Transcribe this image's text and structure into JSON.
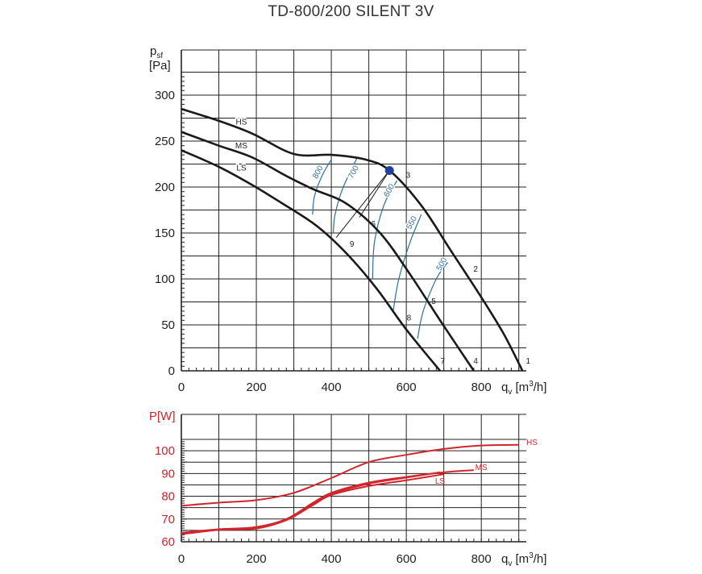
{
  "title": "TD-800/200 SILENT 3V",
  "chart_data": [
    {
      "type": "line",
      "name": "pressure",
      "ylabel_main": "p",
      "ylabel_sub": "sf",
      "ylabel_unit": "[Pa]",
      "xlabel_q": "q",
      "xlabel_sub": "v",
      "xlabel_unit": " [m",
      "xlabel_sup": "3",
      "xlabel_end": "/h]",
      "xlim": [
        0,
        920
      ],
      "ylim": [
        0,
        300
      ],
      "x_ticks": [
        0,
        200,
        400,
        600,
        800
      ],
      "y_ticks": [
        0,
        50,
        100,
        150,
        200,
        250,
        300
      ],
      "grid": true,
      "colors": {
        "curve": "#1a1a1a",
        "iso": "#2e6f9e",
        "point": "#1f3f9f"
      },
      "series": [
        {
          "name": "HS",
          "label_at": [
            160,
            268
          ],
          "x": [
            0,
            100,
            190,
            300,
            400,
            490,
            555,
            640,
            720,
            800,
            860,
            910
          ],
          "y": [
            285,
            272,
            258,
            236,
            235,
            230,
            218,
            180,
            130,
            80,
            40,
            0
          ]
        },
        {
          "name": "MS",
          "label_at": [
            160,
            242
          ],
          "x": [
            0,
            100,
            190,
            280,
            350,
            440,
            530,
            610,
            690,
            780
          ],
          "y": [
            260,
            245,
            232,
            212,
            198,
            182,
            150,
            105,
            55,
            0
          ]
        },
        {
          "name": "LS",
          "label_at": [
            160,
            218
          ],
          "x": [
            0,
            100,
            190,
            270,
            360,
            440,
            520,
            600,
            690
          ],
          "y": [
            240,
            222,
            202,
            182,
            158,
            128,
            90,
            45,
            0
          ]
        }
      ],
      "iso_lines": [
        {
          "label": "800",
          "label_at": [
            370,
            215
          ],
          "x": [
            350,
            355,
            375,
            400
          ],
          "y": [
            170,
            190,
            212,
            230
          ]
        },
        {
          "label": "700",
          "label_at": [
            465,
            215
          ],
          "x": [
            405,
            410,
            430,
            470
          ],
          "y": [
            150,
            170,
            198,
            233
          ]
        },
        {
          "label": "600",
          "label_at": [
            560,
            195
          ],
          "x": [
            510,
            515,
            540,
            575
          ],
          "y": [
            100,
            140,
            180,
            207
          ]
        },
        {
          "label": "550",
          "label_at": [
            620,
            160
          ],
          "x": [
            565,
            580,
            610,
            640
          ],
          "y": [
            65,
            100,
            140,
            170
          ]
        },
        {
          "label": "500",
          "label_at": [
            700,
            115
          ],
          "x": [
            630,
            645,
            680,
            710
          ],
          "y": [
            35,
            65,
            100,
            118
          ]
        }
      ],
      "op_lines": [
        {
          "x": [
            413,
            555
          ],
          "y": [
            145,
            218
          ]
        },
        {
          "x": [
            475,
            555
          ],
          "y": [
            167,
            218
          ]
        }
      ],
      "operating_point": {
        "x": 555,
        "y": 218
      },
      "point_labels": [
        {
          "label": "1",
          "at": [
            925,
            8
          ]
        },
        {
          "label": "2",
          "at": [
            785,
            108
          ]
        },
        {
          "label": "3",
          "at": [
            605,
            210
          ]
        },
        {
          "label": "4",
          "at": [
            785,
            8
          ]
        },
        {
          "label": "5",
          "at": [
            673,
            73
          ]
        },
        {
          "label": "6",
          "at": [
            512,
            157
          ]
        },
        {
          "label": "7",
          "at": [
            697,
            8
          ]
        },
        {
          "label": "8",
          "at": [
            607,
            55
          ]
        },
        {
          "label": "9",
          "at": [
            455,
            135
          ]
        }
      ]
    },
    {
      "type": "line",
      "name": "power",
      "ylabel": "P[W]",
      "xlabel_q": "q",
      "xlabel_sub": "v",
      "xlabel_unit": " [m",
      "xlabel_sup": "3",
      "xlabel_end": "/h]",
      "xlim": [
        0,
        920
      ],
      "ylim": [
        60,
        105
      ],
      "x_ticks": [
        0,
        200,
        400,
        600,
        800
      ],
      "y_ticks": [
        60,
        70,
        80,
        90,
        100
      ],
      "grid": true,
      "colors": {
        "curve": "#d0262c"
      },
      "series": [
        {
          "name": "HS",
          "label_at": [
            935,
            102.5
          ],
          "x": [
            0,
            100,
            200,
            300,
            400,
            500,
            600,
            700,
            800,
            900
          ],
          "y": [
            75.8,
            77.2,
            78.3,
            81.5,
            88,
            95,
            98.2,
            100.8,
            102.3,
            102.6
          ]
        },
        {
          "name": "MS",
          "label_at": [
            800,
            91.5
          ],
          "x": [
            0,
            100,
            200,
            280,
            350,
            400,
            500,
            600,
            700,
            780
          ],
          "y": [
            64,
            65.5,
            66.5,
            70,
            77,
            81.5,
            86,
            88.5,
            90.5,
            91.5
          ]
        },
        {
          "name": "LS",
          "label_at": [
            690,
            85.6
          ],
          "x": [
            0,
            100,
            200,
            280,
            350,
            400,
            500,
            600,
            700
          ],
          "y": [
            63.3,
            65.2,
            65.8,
            69.5,
            76,
            80.5,
            84.5,
            87,
            89.7
          ]
        }
      ],
      "extra_series": [
        {
          "x": [
            0,
            100,
            200,
            280,
            350,
            400,
            500,
            600,
            690
          ],
          "y": [
            63.7,
            65.3,
            66,
            69.7,
            76.5,
            81,
            85.5,
            88.2,
            90.5
          ]
        }
      ]
    }
  ]
}
